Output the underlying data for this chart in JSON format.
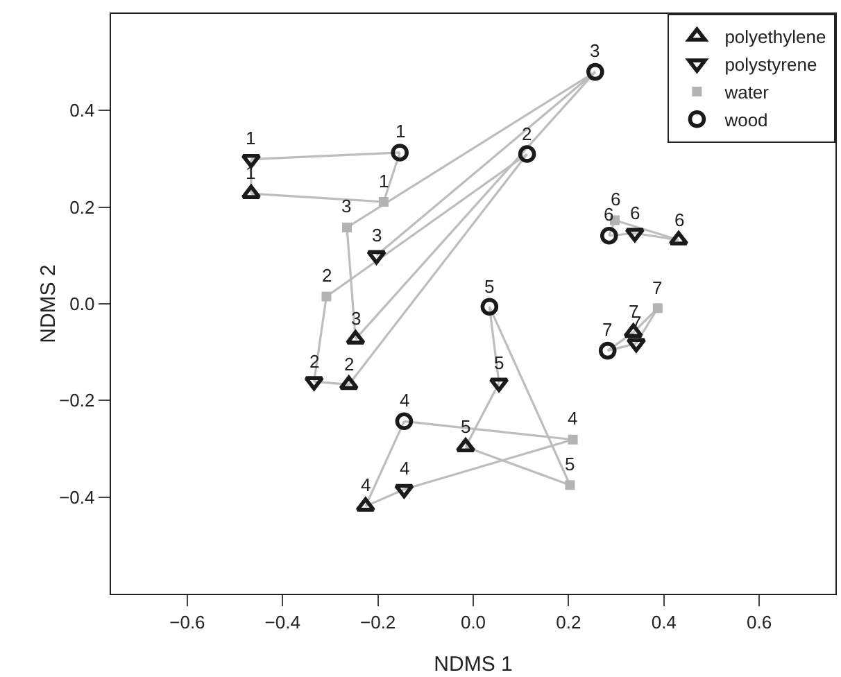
{
  "chart_data": {
    "type": "scatter",
    "xlabel": "NDMS 1",
    "ylabel": "NDMS 2",
    "xlim": [
      -0.76,
      0.76
    ],
    "ylim": [
      -0.6,
      0.6
    ],
    "xticks": [
      {
        "value": -0.6,
        "label": "−0.6"
      },
      {
        "value": -0.4,
        "label": "−0.4"
      },
      {
        "value": -0.2,
        "label": "−0.2"
      },
      {
        "value": 0,
        "label": "0.0"
      },
      0.2,
      0.4,
      0.6
    ],
    "yticks": [
      {
        "value": -0.4,
        "label": "−0.4"
      },
      {
        "value": -0.2,
        "label": "−0.2"
      },
      {
        "value": 0,
        "label": "0.0"
      },
      0.2,
      0.4
    ],
    "grid": false,
    "legend": "top right",
    "series": [
      {
        "type": "line",
        "color": "#bdbdbd",
        "x": [
          -0.466,
          -0.154
        ],
        "values": [
          0.299,
          0.313
        ]
      },
      {
        "type": "line",
        "color": "#bdbdbd",
        "x": [
          -0.188,
          -0.154
        ],
        "values": [
          0.211,
          0.313
        ]
      },
      {
        "type": "line",
        "color": "#bdbdbd",
        "x": [
          -0.466,
          -0.188
        ],
        "values": [
          0.228,
          0.211
        ]
      },
      {
        "type": "line",
        "color": "#bdbdbd",
        "x": [
          -0.466,
          -0.466
        ],
        "values": [
          0.228,
          0.299
        ]
      },
      {
        "type": "line",
        "color": "#bdbdbd",
        "x": [
          -0.334,
          -0.261
        ],
        "values": [
          -0.161,
          -0.167
        ]
      },
      {
        "type": "line",
        "color": "#bdbdbd",
        "x": [
          -0.334,
          -0.308
        ],
        "values": [
          -0.161,
          0.015
        ]
      },
      {
        "type": "line",
        "color": "#bdbdbd",
        "x": [
          -0.308,
          0.113
        ],
        "values": [
          0.015,
          0.31
        ]
      },
      {
        "type": "line",
        "color": "#bdbdbd",
        "x": [
          -0.261,
          0.113
        ],
        "values": [
          -0.167,
          0.31
        ]
      },
      {
        "type": "line",
        "color": "#bdbdbd",
        "x": [
          -0.265,
          -0.247
        ],
        "values": [
          0.158,
          -0.073
        ]
      },
      {
        "type": "line",
        "color": "#bdbdbd",
        "x": [
          -0.265,
          0.256
        ],
        "values": [
          0.158,
          0.48
        ]
      },
      {
        "type": "line",
        "color": "#bdbdbd",
        "x": [
          -0.247,
          0.256
        ],
        "values": [
          -0.073,
          0.48
        ]
      },
      {
        "type": "line",
        "color": "#bdbdbd",
        "x": [
          -0.203,
          0.256
        ],
        "values": [
          0.1,
          0.48
        ]
      },
      {
        "type": "line",
        "color": "#bdbdbd",
        "x": [
          -0.226,
          -0.145
        ],
        "values": [
          -0.419,
          -0.243
        ]
      },
      {
        "type": "line",
        "color": "#bdbdbd",
        "x": [
          -0.226,
          -0.145
        ],
        "values": [
          -0.419,
          -0.384
        ]
      },
      {
        "type": "line",
        "color": "#bdbdbd",
        "x": [
          -0.145,
          0.209
        ],
        "values": [
          -0.384,
          -0.281
        ]
      },
      {
        "type": "line",
        "color": "#bdbdbd",
        "x": [
          -0.145,
          0.209
        ],
        "values": [
          -0.243,
          -0.281
        ]
      },
      {
        "type": "line",
        "color": "#bdbdbd",
        "x": [
          -0.016,
          0.054
        ],
        "values": [
          -0.296,
          -0.164
        ]
      },
      {
        "type": "line",
        "color": "#bdbdbd",
        "x": [
          0.034,
          0.054
        ],
        "values": [
          -0.006,
          -0.164
        ]
      },
      {
        "type": "line",
        "color": "#bdbdbd",
        "x": [
          0.034,
          0.203
        ],
        "values": [
          -0.006,
          -0.375
        ]
      },
      {
        "type": "line",
        "color": "#bdbdbd",
        "x": [
          -0.016,
          0.203
        ],
        "values": [
          -0.296,
          -0.375
        ]
      },
      {
        "type": "line",
        "color": "#bdbdbd",
        "x": [
          0.285,
          0.339
        ],
        "values": [
          0.141,
          0.146
        ]
      },
      {
        "type": "line",
        "color": "#bdbdbd",
        "x": [
          0.339,
          0.431
        ],
        "values": [
          0.146,
          0.132
        ]
      },
      {
        "type": "line",
        "color": "#bdbdbd",
        "x": [
          0.297,
          0.431
        ],
        "values": [
          0.173,
          0.132
        ]
      },
      {
        "type": "line",
        "color": "#bdbdbd",
        "x": [
          0.285,
          0.297
        ],
        "values": [
          0.141,
          0.173
        ]
      },
      {
        "type": "line",
        "color": "#bdbdbd",
        "x": [
          0.282,
          0.336
        ],
        "values": [
          -0.097,
          -0.059
        ]
      },
      {
        "type": "line",
        "color": "#bdbdbd",
        "x": [
          0.336,
          0.387
        ],
        "values": [
          -0.059,
          -0.009
        ]
      },
      {
        "type": "line",
        "color": "#bdbdbd",
        "x": [
          0.342,
          0.387
        ],
        "values": [
          -0.082,
          -0.009
        ]
      },
      {
        "type": "line",
        "color": "#bdbdbd",
        "x": [
          0.282,
          0.342
        ],
        "values": [
          -0.097,
          -0.082
        ]
      },
      {
        "name": "polyethylene",
        "color": "#1a1a1a",
        "marker": "triangle",
        "x": [
          -0.466,
          -0.261,
          -0.247,
          -0.226,
          -0.016,
          0.431,
          0.336
        ],
        "values": [
          0.228,
          -0.167,
          -0.073,
          -0.419,
          -0.296,
          0.132,
          -0.059
        ]
      },
      {
        "name": "polystyrene",
        "color": "#1a1a1a",
        "marker": "triangle-down",
        "x": [
          -0.466,
          -0.334,
          -0.203,
          -0.145,
          0.054,
          0.339,
          0.342
        ],
        "values": [
          0.299,
          -0.161,
          0.1,
          -0.384,
          -0.164,
          0.146,
          -0.082
        ]
      },
      {
        "name": "water",
        "color": "#b3b3b3",
        "marker": "square",
        "x": [
          -0.188,
          -0.308,
          -0.265,
          0.209,
          0.203,
          0.297,
          0.387
        ],
        "values": [
          0.211,
          0.015,
          0.158,
          -0.281,
          -0.375,
          0.173,
          -0.009
        ]
      },
      {
        "name": "wood",
        "color": "#1a1a1a",
        "marker": "circle",
        "x": [
          -0.154,
          0.113,
          0.256,
          -0.145,
          0.034,
          0.285,
          0.282
        ],
        "values": [
          0.313,
          0.31,
          0.48,
          -0.243,
          -0.006,
          0.141,
          -0.097
        ]
      }
    ],
    "annotations": [
      {
        "text": "1",
        "x": -0.466,
        "y": 0.228
      },
      {
        "text": "2",
        "x": -0.261,
        "y": -0.167
      },
      {
        "text": "3",
        "x": -0.247,
        "y": -0.073
      },
      {
        "text": "4",
        "x": -0.226,
        "y": -0.419
      },
      {
        "text": "5",
        "x": -0.016,
        "y": -0.296
      },
      {
        "text": "6",
        "x": 0.431,
        "y": 0.132
      },
      {
        "text": "7",
        "x": 0.336,
        "y": -0.059
      },
      {
        "text": "1",
        "x": -0.466,
        "y": 0.299
      },
      {
        "text": "2",
        "x": -0.334,
        "y": -0.161
      },
      {
        "text": "3",
        "x": -0.203,
        "y": 0.1
      },
      {
        "text": "4",
        "x": -0.145,
        "y": -0.384
      },
      {
        "text": "5",
        "x": 0.054,
        "y": -0.164
      },
      {
        "text": "6",
        "x": 0.339,
        "y": 0.146
      },
      {
        "text": "7",
        "x": 0.342,
        "y": -0.082
      },
      {
        "text": "1",
        "x": -0.188,
        "y": 0.211
      },
      {
        "text": "2",
        "x": -0.308,
        "y": 0.015
      },
      {
        "text": "3",
        "x": -0.265,
        "y": 0.158
      },
      {
        "text": "4",
        "x": 0.209,
        "y": -0.281
      },
      {
        "text": "5",
        "x": 0.203,
        "y": -0.375
      },
      {
        "text": "6",
        "x": 0.297,
        "y": 0.173
      },
      {
        "text": "7",
        "x": 0.387,
        "y": -0.009
      },
      {
        "text": "1",
        "x": -0.154,
        "y": 0.313
      },
      {
        "text": "2",
        "x": 0.113,
        "y": 0.31
      },
      {
        "text": "3",
        "x": 0.256,
        "y": 0.48
      },
      {
        "text": "4",
        "x": -0.145,
        "y": -0.243
      },
      {
        "text": "5",
        "x": 0.034,
        "y": -0.006
      },
      {
        "text": "6",
        "x": 0.285,
        "y": 0.141
      },
      {
        "text": "7",
        "x": 0.282,
        "y": -0.097
      }
    ]
  }
}
